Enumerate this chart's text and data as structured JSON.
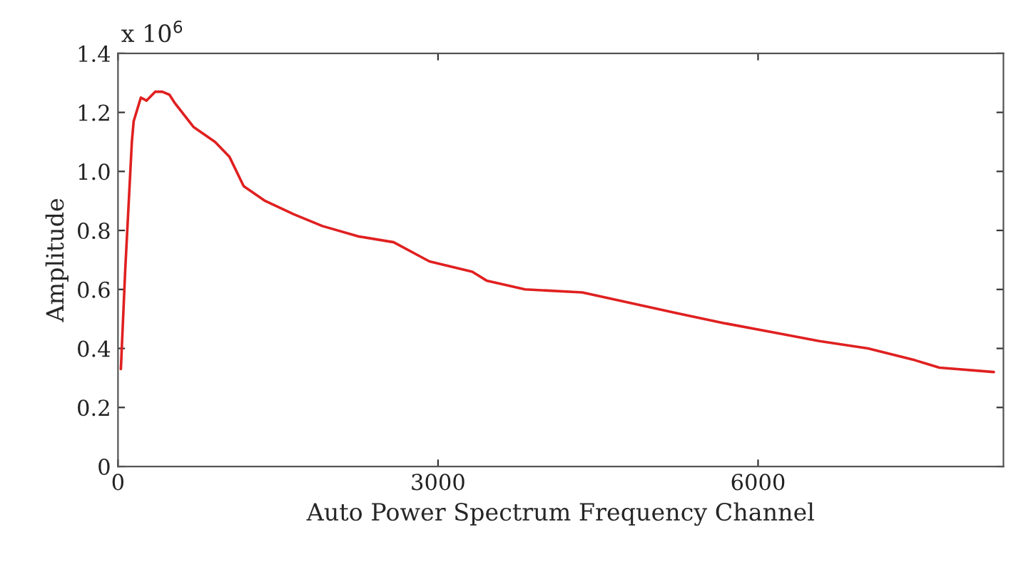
{
  "chart_data": {
    "type": "line",
    "xlabel": "Auto Power Spectrum Frequency Channel",
    "ylabel": "Amplitude",
    "annotations": [
      "x 10$^{6}$"
    ],
    "xlim": [
      0,
      8300
    ],
    "xticks": [
      0,
      3000,
      6000
    ],
    "ylim": [
      0,
      1.4
    ],
    "yticks": [
      0,
      0.2,
      0.4,
      0.6,
      0.8,
      {
        "value": 1,
        "label": "1.0"
      },
      1.2,
      1.4
    ],
    "grid": false,
    "line_style": "solid",
    "series": [
      {
        "color": "#e02020",
        "x": [
          27,
          67,
          130,
          147,
          214,
          268,
          348,
          415,
          482,
          536,
          710,
          910,
          1044,
          1178,
          1379,
          1647,
          1915,
          2249,
          2584,
          2919,
          3321,
          3455,
          3816,
          4352,
          4794,
          5235,
          5691,
          6133,
          6574,
          7030,
          7472,
          7700,
          8210
        ],
        "values": [
          0.33,
          0.66,
          1.1,
          1.17,
          1.25,
          1.24,
          1.27,
          1.27,
          1.26,
          1.23,
          1.15,
          1.1,
          1.05,
          0.95,
          0.9,
          0.855,
          0.815,
          0.78,
          0.76,
          0.695,
          0.66,
          0.63,
          0.6,
          0.59,
          0.555,
          0.52,
          0.485,
          0.455,
          0.425,
          0.4,
          0.36,
          0.335,
          0.32
        ]
      }
    ]
  }
}
